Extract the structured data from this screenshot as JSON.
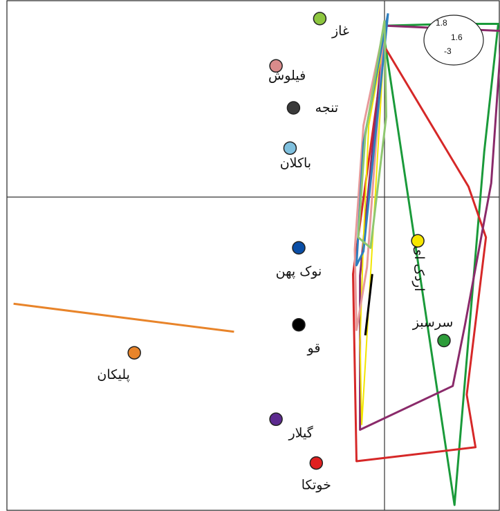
{
  "chart_data": {
    "type": "scatter",
    "title": "",
    "xlabel": "",
    "ylabel": "",
    "grid": false,
    "legend": "none",
    "axes_crossing": {
      "x": 0,
      "y": 0
    },
    "xlim": [
      -2.2,
      0.7
    ],
    "ylim": [
      -1.8,
      1.1
    ],
    "points": [
      {
        "label": "غاز",
        "color": "#8dc63f",
        "x": -0.37,
        "y": 1.02
      },
      {
        "label": "فیلوش",
        "color": "#d98b8b",
        "x": -0.62,
        "y": 0.75
      },
      {
        "label": "تنجه",
        "color": "#3a3a3a",
        "x": -0.52,
        "y": 0.51
      },
      {
        "label": "باکلان",
        "color": "#7fc0de",
        "x": -0.54,
        "y": 0.28
      },
      {
        "label": "نوک پهن",
        "color": "#0a4ea6",
        "x": -0.49,
        "y": -0.29
      },
      {
        "label": "قو",
        "color": "#000000",
        "x": -0.49,
        "y": -0.73
      },
      {
        "label": "پلیکان",
        "color": "#e8842a",
        "x": -1.43,
        "y": -0.89
      },
      {
        "label": "گیلار",
        "color": "#5c2a8f",
        "x": -0.62,
        "y": -1.27
      },
      {
        "label": "خوتکا",
        "color": "#e02020",
        "x": -0.39,
        "y": -1.52
      },
      {
        "label": "اردک ای",
        "color": "#f6e600",
        "x": 0.19,
        "y": -0.25
      },
      {
        "label": "سرسبز",
        "color": "#2d9c3a",
        "x": 0.34,
        "y": -0.82
      }
    ],
    "series": [
      {
        "color": "#e8842a",
        "width": 3,
        "closed": false,
        "x": [
          -2.12,
          -0.86
        ],
        "y": [
          -0.61,
          -0.77
        ]
      },
      {
        "color": "#1a9a3a",
        "width": 3,
        "closed": false,
        "x": [
          0.01,
          0.4,
          0.65,
          0.57,
          0.4,
          0.0
        ],
        "y": [
          0.98,
          0.99,
          0.99,
          0.26,
          -1.76,
          0.9
        ]
      },
      {
        "color": "#d62828",
        "width": 3,
        "closed": true,
        "x": [
          0.0,
          0.48,
          0.58,
          0.47,
          0.52,
          -0.16,
          -0.18,
          0.0
        ],
        "y": [
          0.86,
          0.06,
          -0.23,
          -1.13,
          -1.43,
          -1.51,
          -0.44,
          0.86
        ]
      },
      {
        "color": "#8a2a6a",
        "width": 3,
        "closed": true,
        "x": [
          0.0,
          0.67,
          0.61,
          0.46,
          0.39,
          -0.14,
          -0.14,
          0.0
        ],
        "y": [
          0.98,
          0.95,
          0.08,
          -0.73,
          -1.08,
          -1.33,
          -0.45,
          0.98
        ]
      },
      {
        "color": "#f2e600",
        "width": 2,
        "closed": false,
        "x": [
          0.0,
          -0.09,
          -0.12,
          -0.14,
          -0.13,
          0.0
        ],
        "y": [
          0.91,
          0.41,
          -0.24,
          -0.83,
          -1.3,
          0.91
        ]
      },
      {
        "color": "#e79a9a",
        "width": 3,
        "closed": false,
        "x": [
          0.0,
          -0.12,
          -0.17,
          -0.16,
          -0.1,
          0.0
        ],
        "y": [
          0.98,
          0.41,
          -0.3,
          -0.76,
          -0.4,
          0.98
        ]
      },
      {
        "color": "#2d7fbf",
        "width": 3,
        "closed": false,
        "x": [
          0.02,
          -0.12,
          -0.16,
          -0.12,
          0.02
        ],
        "y": [
          1.05,
          0.31,
          -0.39,
          -0.31,
          1.05
        ]
      },
      {
        "color": "#8fc870",
        "width": 3,
        "closed": false,
        "x": [
          0.0,
          -0.11,
          -0.15,
          -0.08,
          0.01,
          0.0
        ],
        "y": [
          1.01,
          0.35,
          -0.23,
          -0.29,
          0.46,
          1.01
        ]
      },
      {
        "color": "#000000",
        "width": 3,
        "closed": false,
        "x": [
          -0.07,
          -0.11
        ],
        "y": [
          -0.44,
          -0.79
        ]
      }
    ],
    "annotations": [
      {
        "text": "1.8"
      },
      {
        "text": "-3"
      },
      {
        "text": "1.6"
      }
    ]
  }
}
